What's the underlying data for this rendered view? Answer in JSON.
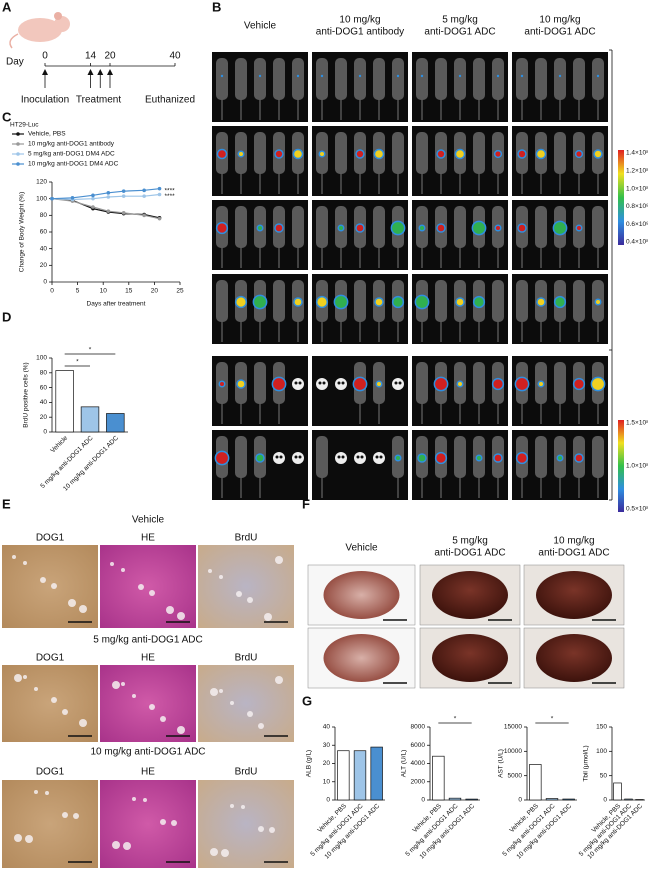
{
  "panels": {
    "letters": [
      "A",
      "B",
      "C",
      "D",
      "E",
      "F",
      "G"
    ],
    "a": {
      "day_label": "Day",
      "days": [
        0,
        14,
        20,
        40
      ],
      "events": [
        "Inoculation",
        "Treatment",
        "Euthanized"
      ]
    },
    "b": {
      "columns": [
        [
          "Vehicle"
        ],
        [
          "10 mg/kg",
          "anti-DOG1 antibody"
        ],
        [
          "5 mg/kg",
          "anti-DOG1 ADC"
        ],
        [
          "10 mg/kg",
          "anti-DOG1 ADC"
        ]
      ],
      "colorbar1": [
        "1.4×10⁸",
        "1.2×10⁸",
        "1.0×10⁸",
        "0.8×10⁸",
        "0.6×10⁸",
        "0.4×10⁸"
      ],
      "colorbar2": [
        "1.5×10⁸",
        "1.0×10⁸",
        "0.5×10⁸"
      ]
    },
    "e": {
      "groups": [
        "Vehicle",
        "5 mg/kg anti-DOG1 ADC",
        "10 mg/kg anti-DOG1 ADC"
      ],
      "stains": [
        "DOG1",
        "HE",
        "BrdU"
      ]
    },
    "f": {
      "columns": [
        [
          "Vehicle"
        ],
        [
          "5 mg/kg",
          "anti-DOG1 ADC"
        ],
        [
          "10 mg/kg",
          "anti-DOG1 ADC"
        ]
      ]
    }
  },
  "chart_data": [
    {
      "type": "line",
      "title": "HT29-Luc",
      "ylabel": "Change of Body Weight (%)",
      "xlabel": "Days after treatment",
      "x": [
        0,
        4,
        8,
        11,
        14,
        18,
        21
      ],
      "xlim": [
        0,
        25
      ],
      "xticks": [
        0,
        5,
        10,
        15,
        20,
        25
      ],
      "ylim": [
        0,
        120
      ],
      "yticks": [
        0,
        20,
        40,
        60,
        80,
        100,
        120
      ],
      "series": [
        {
          "name": "Vehicle, PBS",
          "color": "#111111",
          "values": [
            100,
            98,
            88,
            84,
            82,
            81,
            77
          ]
        },
        {
          "name": "10 mg/kg anti-DOG1 antibody",
          "color": "#999999",
          "values": [
            100,
            97,
            90,
            85,
            83,
            80,
            76
          ]
        },
        {
          "name": "5 mg/kg anti-DOG1 DM4 ADC",
          "color": "#9ec5e8",
          "values": [
            100,
            99,
            100,
            102,
            103,
            103,
            105
          ]
        },
        {
          "name": "10 mg/kg anti-DOG1 DM4 ADC",
          "color": "#4a8fd0",
          "values": [
            100,
            101,
            104,
            107,
            109,
            110,
            112
          ]
        }
      ],
      "annotations": [
        "****",
        "****"
      ]
    },
    {
      "type": "bar",
      "ylabel": "BrdU positive cells (%)",
      "categories": [
        "Vehicle",
        "5 mg/kg anti-DOG1 ADC",
        "10 mg/kg anti-DOG1 ADC"
      ],
      "values": [
        83,
        34,
        25
      ],
      "colors": [
        "#ffffff",
        "#9ec5e8",
        "#4a8fd0"
      ],
      "ylim": [
        0,
        100
      ],
      "yticks": [
        0,
        20,
        40,
        60,
        80,
        100
      ],
      "annotations": [
        "*",
        "*"
      ]
    },
    {
      "type": "bar",
      "ylabel": "ALB (g/L)",
      "categories": [
        "Vehicle, PBS",
        "5 mg/kg anti-DOG1 ADC",
        "10 mg/kg anti-DOG1 ADC"
      ],
      "values": [
        27,
        27,
        29
      ],
      "colors": [
        "#ffffff",
        "#9ec5e8",
        "#4a8fd0"
      ],
      "ylim": [
        0,
        40
      ],
      "yticks": [
        0,
        10,
        20,
        30,
        40
      ],
      "annotations": []
    },
    {
      "type": "bar",
      "ylabel": "ALT (U/L)",
      "categories": [
        "Vehicle, PBS",
        "5 mg/kg anti-DOG1 ADC",
        "10 mg/kg anti-DOG1 ADC"
      ],
      "values": [
        4800,
        200,
        100
      ],
      "colors": [
        "#ffffff",
        "#9ec5e8",
        "#4a8fd0"
      ],
      "ylim": [
        0,
        8000
      ],
      "yticks": [
        0,
        2000,
        4000,
        6000,
        8000
      ],
      "annotations": [
        "*"
      ]
    },
    {
      "type": "bar",
      "ylabel": "AST (U/L)",
      "categories": [
        "Vehicle, PBS",
        "5 mg/kg anti-DOG1 ADC",
        "10 mg/kg anti-DOG1 ADC"
      ],
      "values": [
        7300,
        300,
        200
      ],
      "colors": [
        "#ffffff",
        "#9ec5e8",
        "#4a8fd0"
      ],
      "ylim": [
        0,
        15000
      ],
      "yticks": [
        0,
        5000,
        10000,
        15000
      ],
      "annotations": [
        "*"
      ]
    },
    {
      "type": "bar",
      "ylabel": "Tbil (μmol/L)",
      "categories": [
        "Vehicle, PBS",
        "5 mg/kg anti-DOG1 ADC",
        "10 mg/kg anti-DOG1 ADC"
      ],
      "values": [
        35,
        2,
        1
      ],
      "colors": [
        "#ffffff",
        "#9ec5e8",
        "#4a8fd0"
      ],
      "ylim": [
        0,
        150
      ],
      "yticks": [
        0,
        50,
        100,
        150
      ],
      "annotations": []
    }
  ]
}
